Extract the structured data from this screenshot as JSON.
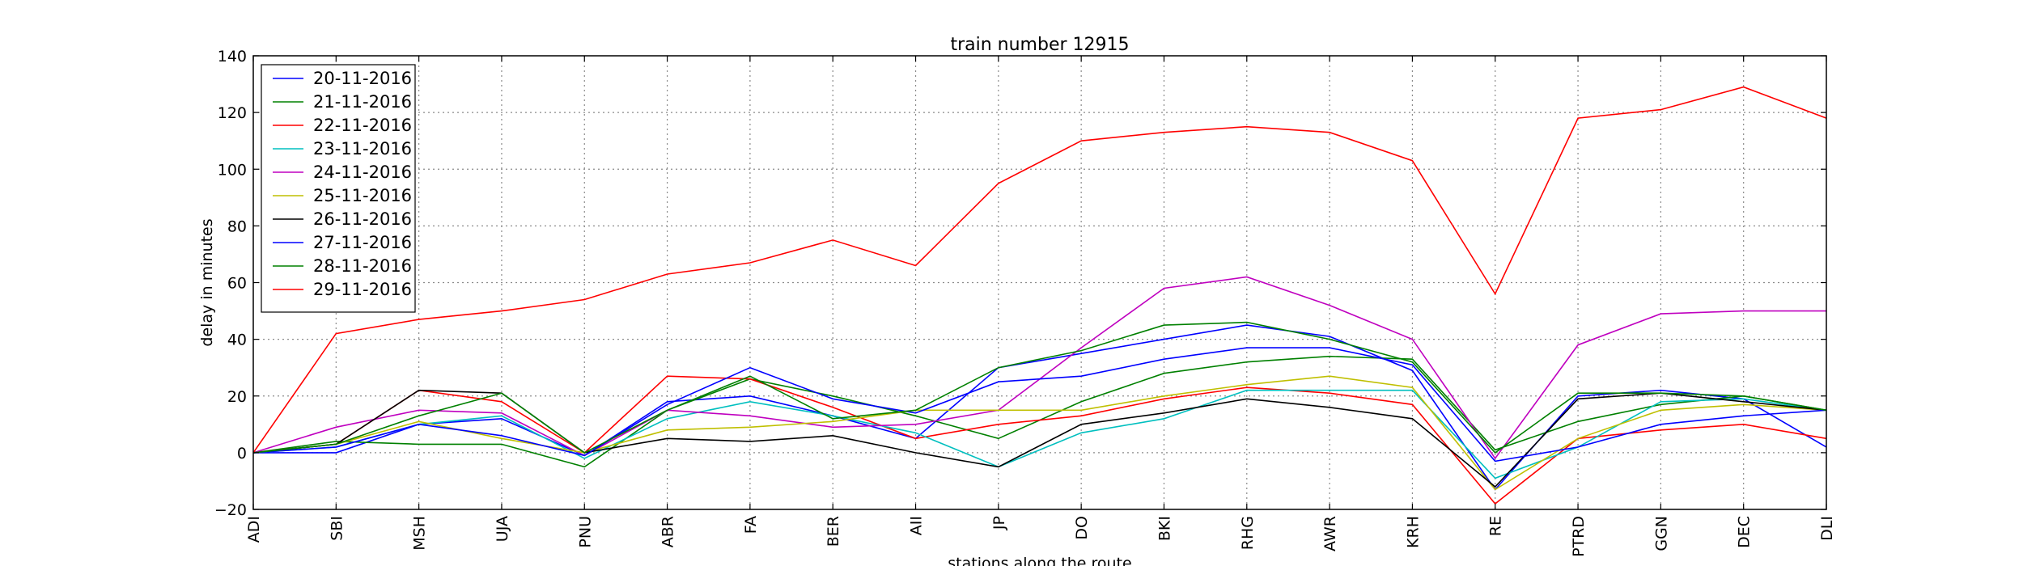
{
  "chart_data": {
    "type": "line",
    "title": "train number 12915",
    "xlabel": "stations along the route",
    "ylabel": "delay in minutes",
    "ylim": [
      -20,
      140
    ],
    "yticks": [
      -20,
      0,
      20,
      40,
      60,
      80,
      100,
      120,
      140
    ],
    "grid": true,
    "legend_position": "top-left",
    "categories": [
      "ADI",
      "SBI",
      "MSH",
      "UJA",
      "PNU",
      "ABR",
      "FA",
      "BER",
      "AII",
      "JP",
      "DO",
      "BKI",
      "RHG",
      "AWR",
      "KRH",
      "RE",
      "PTRD",
      "GGN",
      "DEC",
      "DLI"
    ],
    "series": [
      {
        "name": "20-11-2016",
        "color": "#0000ff",
        "values": [
          0,
          0,
          10,
          12,
          -1,
          18,
          20,
          13,
          5,
          30,
          35,
          40,
          45,
          41,
          29,
          -13,
          20,
          22,
          19,
          2
        ]
      },
      {
        "name": "21-11-2016",
        "color": "#008000",
        "values": [
          0,
          4,
          3,
          3,
          -5,
          15,
          26,
          20,
          13,
          5,
          18,
          28,
          32,
          34,
          33,
          1,
          11,
          17,
          20,
          15
        ]
      },
      {
        "name": "22-11-2016",
        "color": "#ff0000",
        "values": [
          0,
          3,
          22,
          18,
          0,
          27,
          26,
          16,
          5,
          10,
          13,
          19,
          23,
          21,
          17,
          -18,
          5,
          8,
          10,
          5
        ]
      },
      {
        "name": "23-11-2016",
        "color": "#00bfbf",
        "values": [
          0,
          2,
          10,
          13,
          -2,
          12,
          18,
          13,
          7,
          -5,
          7,
          12,
          22,
          22,
          22,
          -9,
          2,
          18,
          19,
          15
        ]
      },
      {
        "name": "24-11-2016",
        "color": "#bf00bf",
        "values": [
          0,
          9,
          15,
          14,
          -1,
          15,
          13,
          9,
          10,
          15,
          37,
          58,
          62,
          52,
          40,
          -2,
          38,
          49,
          50,
          50
        ]
      },
      {
        "name": "25-11-2016",
        "color": "#bfbf00",
        "values": [
          0,
          3,
          11,
          5,
          0,
          8,
          9,
          11,
          15,
          15,
          15,
          20,
          24,
          27,
          23,
          -13,
          5,
          15,
          17,
          15
        ]
      },
      {
        "name": "26-11-2016",
        "color": "#000000",
        "values": [
          0,
          3,
          22,
          21,
          0,
          5,
          4,
          6,
          0,
          -5,
          10,
          14,
          19,
          16,
          12,
          -12,
          19,
          21,
          18,
          15
        ]
      },
      {
        "name": "27-11-2016",
        "color": "#0000ff",
        "values": [
          0,
          2,
          10,
          6,
          -1,
          17,
          30,
          19,
          14,
          25,
          27,
          33,
          37,
          37,
          31,
          -3,
          2,
          10,
          13,
          15
        ]
      },
      {
        "name": "28-11-2016",
        "color": "#008000",
        "values": [
          0,
          3,
          13,
          21,
          0,
          15,
          27,
          12,
          15,
          30,
          36,
          45,
          46,
          40,
          32,
          0,
          21,
          21,
          20,
          15
        ]
      },
      {
        "name": "29-11-2016",
        "color": "#ff0000",
        "values": [
          0,
          42,
          47,
          50,
          54,
          63,
          67,
          75,
          66,
          95,
          110,
          113,
          115,
          113,
          103,
          56,
          118,
          121,
          129,
          118
        ]
      }
    ]
  }
}
